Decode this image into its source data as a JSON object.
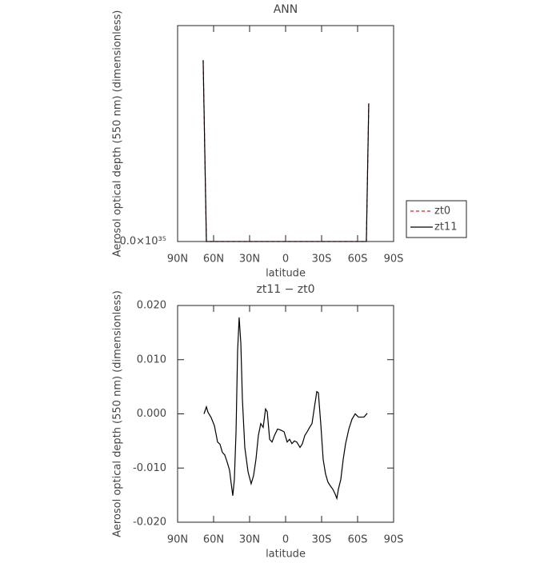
{
  "chart_data": [
    {
      "type": "line",
      "title": "ANN",
      "x_label": "latitude",
      "y_label": "Aerosol optical depth (550 nm) (dimensionless)",
      "x": [
        68.7,
        66,
        0,
        -67.3,
        -69.3
      ],
      "series": [
        {
          "name": "zt0",
          "color": "#e0201b",
          "line_style": "dashed",
          "values": [
            8.4e+35,
            0,
            0,
            0,
            6.4e+35
          ]
        },
        {
          "name": "zt11",
          "color": "#000000",
          "line_style": "solid",
          "values": [
            8.4e+35,
            0,
            0,
            0,
            6.4e+35
          ]
        }
      ],
      "xlim": [
        90,
        -90
      ],
      "xticks": [
        {
          "value": 90,
          "label": "90N"
        },
        {
          "value": 60,
          "label": "60N"
        },
        {
          "value": 30,
          "label": "30N"
        },
        0,
        {
          "value": -30,
          "label": "30S"
        },
        {
          "value": -60,
          "label": "60S"
        },
        {
          "value": -90,
          "label": "90S"
        }
      ],
      "ylim": [
        0,
        1e+36
      ],
      "yticks": [
        {
          "value": 0,
          "label": "0.0×10³⁵"
        }
      ],
      "legend": "right"
    },
    {
      "type": "line",
      "title": "zt11 − zt0",
      "x_label": "latitude",
      "y_label": "Aerosol optical depth (550 nm) (dimensionless)",
      "x": [
        68.0,
        66.0,
        64.7,
        62.0,
        59.3,
        56.7,
        54.7,
        52.7,
        50.7,
        48.7,
        46.7,
        45.3,
        44.0,
        42.7,
        41.3,
        40.0,
        38.7,
        37.3,
        36.0,
        34.0,
        31.3,
        28.7,
        26.7,
        24.7,
        22.7,
        20.7,
        18.7,
        16.7,
        15.3,
        13.3,
        11.3,
        9.3,
        6.7,
        4.0,
        1.3,
        -1.3,
        -3.3,
        -5.3,
        -7.3,
        -9.3,
        -12.0,
        -14.0,
        -16.0,
        -18.0,
        -20.0,
        -22.0,
        -24.0,
        -26.0,
        -27.3,
        -29.3,
        -31.3,
        -33.3,
        -35.3,
        -37.3,
        -39.3,
        -41.3,
        -42.7,
        -44.0,
        -46.0,
        -48.0,
        -50.0,
        -52.7,
        -55.3,
        -58.0,
        -60.7,
        -62.7,
        -65.3,
        -68.0
      ],
      "values": [
        0,
        0.0013,
        0.0003,
        -0.0007,
        -0.0022,
        -0.0052,
        -0.0056,
        -0.0071,
        -0.0076,
        -0.0089,
        -0.0104,
        -0.0129,
        -0.0151,
        -0.0121,
        -0.0033,
        0.0116,
        0.0178,
        0.013,
        0.0027,
        -0.0062,
        -0.0107,
        -0.0129,
        -0.0114,
        -0.0084,
        -0.004,
        -0.0018,
        -0.0025,
        0.0009,
        0.0004,
        -0.0047,
        -0.0052,
        -0.004,
        -0.0028,
        -0.003,
        -0.0033,
        -0.0052,
        -0.0047,
        -0.0055,
        -0.005,
        -0.0052,
        -0.0062,
        -0.0055,
        -0.004,
        -0.0033,
        -0.0025,
        -0.0018,
        0.0012,
        0.0041,
        0.0039,
        -0.0018,
        -0.0084,
        -0.0111,
        -0.0126,
        -0.0133,
        -0.0139,
        -0.0148,
        -0.0156,
        -0.0139,
        -0.0121,
        -0.0084,
        -0.0055,
        -0.0028,
        -0.001,
        0,
        -0.0006,
        -0.0006,
        -0.0006,
        0.0001
      ],
      "color": "#000000",
      "xlim": [
        90,
        -90
      ],
      "xticks": [
        {
          "value": 90,
          "label": "90N"
        },
        {
          "value": 60,
          "label": "60N"
        },
        {
          "value": 30,
          "label": "30N"
        },
        0,
        {
          "value": -30,
          "label": "30S"
        },
        {
          "value": -60,
          "label": "60S"
        },
        {
          "value": -90,
          "label": "90S"
        }
      ],
      "ylim": [
        -0.02,
        0.02
      ],
      "yticks": [
        {
          "value": -0.02,
          "label": "-0.020"
        },
        {
          "value": -0.01,
          "label": "-0.010"
        },
        {
          "value": 0,
          "label": "0.000"
        },
        {
          "value": 0.01,
          "label": "0.010"
        },
        {
          "value": 0.02,
          "label": "0.020"
        }
      ]
    }
  ]
}
